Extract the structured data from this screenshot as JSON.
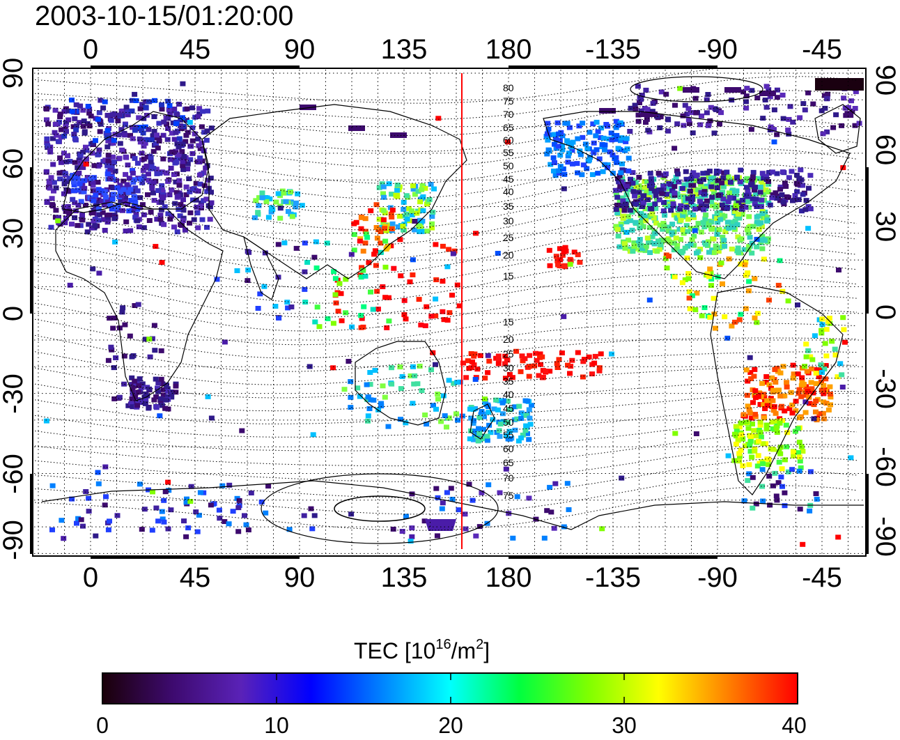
{
  "title": "2003-10-15/01:20:00",
  "axes": {
    "lon_ticks": [
      "0",
      "45",
      "90",
      "135",
      "180",
      "-135",
      "-90",
      "-45"
    ],
    "lat_ticks": [
      "90",
      "60",
      "30",
      "0",
      "-30",
      "-60",
      "-90"
    ]
  },
  "contour_labels": {
    "north": [
      "80",
      "75",
      "70",
      "65",
      "60",
      "55",
      "50",
      "45",
      "40",
      "35",
      "30",
      "25",
      "20",
      "15"
    ],
    "south": [
      "15",
      "20",
      "25",
      "30",
      "35",
      "40",
      "45",
      "50",
      "55",
      "60",
      "65",
      "70",
      "75"
    ]
  },
  "colorbar": {
    "label": "TEC  [10",
    "label_exp": "16",
    "label_unit": "/m",
    "label_unit_exp": "2",
    "label_end": "]",
    "ticks": [
      "0",
      "10",
      "20",
      "30",
      "40"
    ],
    "range": [
      0,
      40
    ],
    "colors": [
      "#1a0008",
      "#3d0a6e",
      "#5a22b8",
      "#0000ff",
      "#0080ff",
      "#00ffff",
      "#00ff40",
      "#80ff00",
      "#ffff00",
      "#ff8000",
      "#ff0000"
    ]
  },
  "colors": {
    "terminator": "#ff0000",
    "frame": "#000000"
  }
}
